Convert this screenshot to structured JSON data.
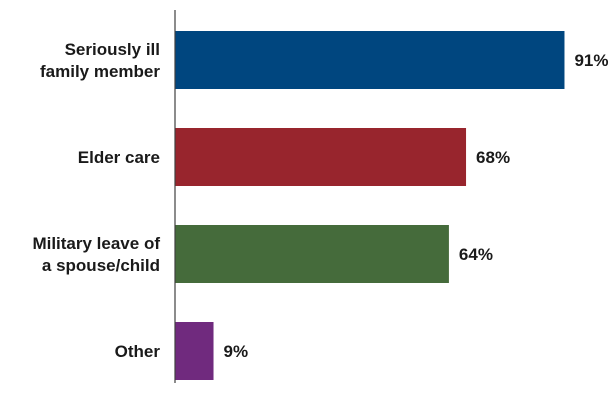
{
  "chart_data": {
    "type": "bar",
    "orientation": "horizontal",
    "categories": [
      [
        "Seriously ill",
        "family member"
      ],
      [
        "Elder care"
      ],
      [
        "Military leave of",
        "a spouse/child"
      ],
      [
        "Other"
      ]
    ],
    "values": [
      91,
      68,
      64,
      9
    ],
    "value_labels": [
      "91%",
      "68%",
      "64%",
      "9%"
    ],
    "colors": [
      "#00467f",
      "#98252d",
      "#456b3b",
      "#702a7e"
    ],
    "axis_color": "#404040",
    "xlim": [
      0,
      100
    ],
    "grid": false,
    "legend": "none"
  }
}
